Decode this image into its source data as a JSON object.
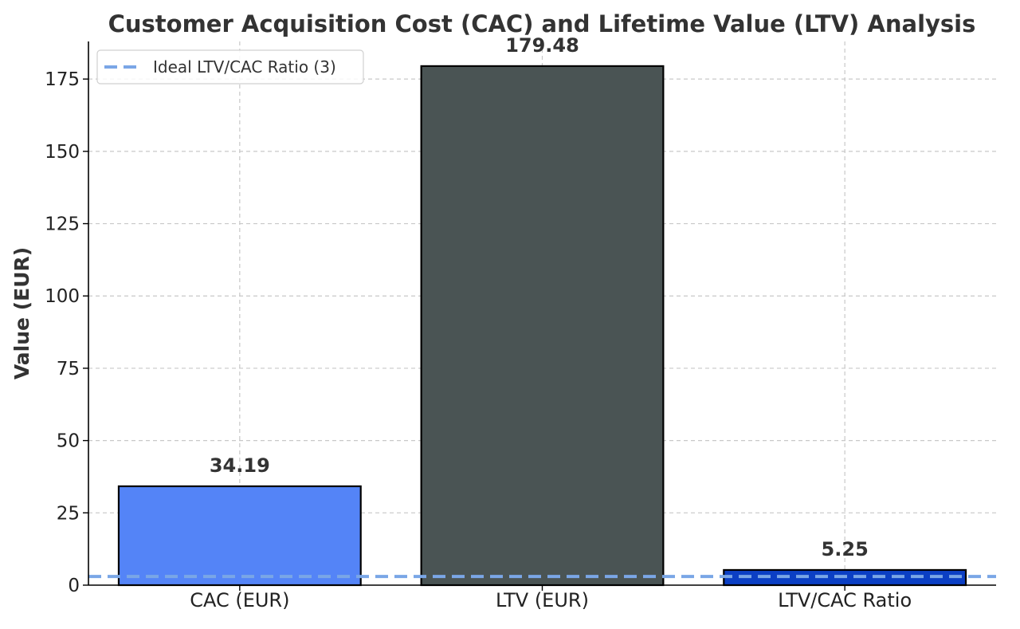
{
  "chart_data": {
    "type": "bar",
    "title": "Customer Acquisition Cost (CAC) and Lifetime Value (LTV) Analysis",
    "xlabel": "",
    "ylabel": "Value (EUR)",
    "categories": [
      "CAC (EUR)",
      "LTV (EUR)",
      "LTV/CAC Ratio"
    ],
    "values": [
      34.19,
      179.48,
      5.25
    ],
    "value_labels": [
      "34.19",
      "179.48",
      "5.25"
    ],
    "bar_colors": [
      "#5484f7",
      "#4a5454",
      "#0b3fc4"
    ],
    "ylim": [
      0,
      188
    ],
    "yticks": [
      0,
      25,
      50,
      75,
      100,
      125,
      150,
      175
    ],
    "ytick_labels": [
      "0",
      "25",
      "50",
      "75",
      "100",
      "125",
      "150",
      "175"
    ],
    "grid": true,
    "reference_line": {
      "value": 3,
      "label": "Ideal LTV/CAC Ratio (3)",
      "color": "#7aa6e6",
      "style": "dashed"
    },
    "legend": {
      "position": "top-left",
      "entries": [
        "Ideal LTV/CAC Ratio (3)"
      ]
    }
  }
}
